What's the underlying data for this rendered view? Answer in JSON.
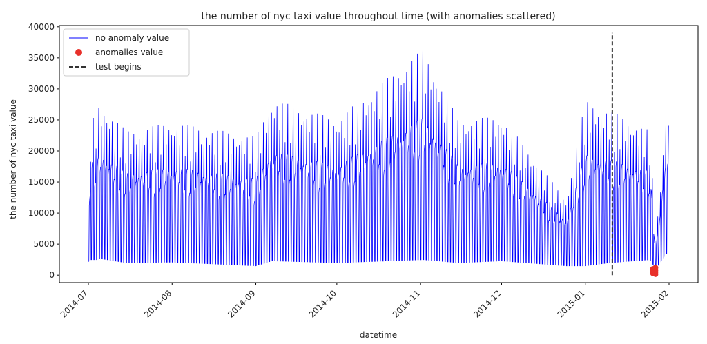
{
  "chart_data": {
    "type": "line",
    "title": "the number of nyc taxi value throughout time (with anomalies scattered)",
    "xlabel": "datetime",
    "ylabel": "the number of nyc taxi value",
    "xlim": [
      "2014-07-01",
      "2015-02-01"
    ],
    "ylim": [
      -1200,
      40200
    ],
    "x_ticks": [
      "2014-07",
      "2014-08",
      "2014-09",
      "2014-10",
      "2014-11",
      "2014-12",
      "2015-01",
      "2015-02"
    ],
    "y_ticks": [
      0,
      5000,
      10000,
      15000,
      20000,
      25000,
      30000,
      35000,
      40000
    ],
    "grid": false,
    "legend_position": "upper-left",
    "series": [
      {
        "name": "no anomaly value",
        "kind": "line",
        "color": "#0000ff",
        "daily_profile": [
          {
            "date": "2014-07-01",
            "min": 2200,
            "max": 20500
          },
          {
            "date": "2014-07-02",
            "min": 2500,
            "max": 27500
          },
          {
            "date": "2014-07-04",
            "min": 2500,
            "max": 27000
          },
          {
            "date": "2014-07-05",
            "min": 2700,
            "max": 30000
          },
          {
            "date": "2014-07-15",
            "min": 2000,
            "max": 25000
          },
          {
            "date": "2014-08-01",
            "min": 2100,
            "max": 26500
          },
          {
            "date": "2014-09-01",
            "min": 1500,
            "max": 24000
          },
          {
            "date": "2014-09-07",
            "min": 2300,
            "max": 30500
          },
          {
            "date": "2014-10-01",
            "min": 2000,
            "max": 27000
          },
          {
            "date": "2014-11-02",
            "min": 2500,
            "max": 39200
          },
          {
            "date": "2014-11-15",
            "min": 2000,
            "max": 27000
          },
          {
            "date": "2014-12-01",
            "min": 2300,
            "max": 27500
          },
          {
            "date": "2014-12-25",
            "min": 1500,
            "max": 13000
          },
          {
            "date": "2015-01-01",
            "min": 1500,
            "max": 30300
          },
          {
            "date": "2015-01-10",
            "min": 2000,
            "max": 28500
          },
          {
            "date": "2015-01-25",
            "min": 2500,
            "max": 25000
          },
          {
            "date": "2015-01-27",
            "min": 1000,
            "max": 5500
          },
          {
            "date": "2015-01-31",
            "min": 3500,
            "max": 28800
          }
        ]
      },
      {
        "name": "anomalies value",
        "kind": "scatter",
        "color": "#e8302a",
        "points": [
          {
            "x": "2015-01-26",
            "y": 300
          },
          {
            "x": "2015-01-26",
            "y": 600
          },
          {
            "x": "2015-01-26",
            "y": 1000
          },
          {
            "x": "2015-01-27",
            "y": 150
          },
          {
            "x": "2015-01-27",
            "y": 500
          },
          {
            "x": "2015-01-27",
            "y": 800
          },
          {
            "x": "2015-01-27",
            "y": 1200
          }
        ]
      },
      {
        "name": "test begins",
        "kind": "vline",
        "color": "#333333",
        "x": "2015-01-11",
        "y_range": [
          0,
          39000
        ]
      }
    ]
  }
}
